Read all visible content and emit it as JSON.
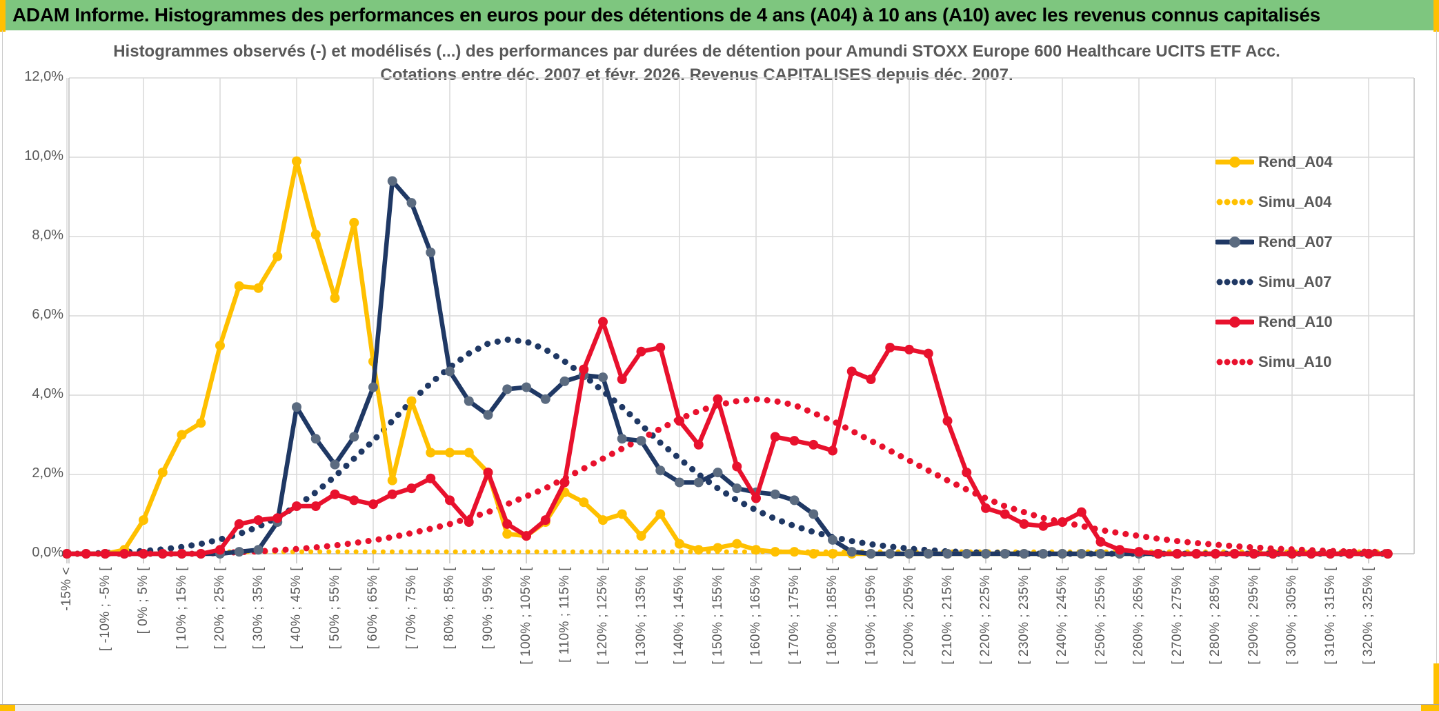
{
  "header": {
    "title": "ADAM Informe. Histogrammes des performances en euros pour des détentions de 4 ans (A04) à 10 ans (A10) avec les revenus connus capitalisés"
  },
  "chart": {
    "title_line1": "Histogrammes observés (-) et modélisés (...) des performances par durées de détention pour Amundi STOXX Europe 600 Healthcare UCITS ETF Acc.",
    "title_line2": "Cotations entre déc. 2007 et févr. 2026. Revenus CAPITALISES depuis déc. 2007."
  },
  "colors": {
    "header_green": "#7EC67F",
    "accent_yellow": "#FFC000",
    "grid": "#D9D9D9",
    "axis_line": "#BFBFBF",
    "text_gray": "#595959",
    "gold": "#FFC000",
    "navy": "#1F3864",
    "navy_marker": "#5B6B80",
    "red": "#E8112D"
  },
  "chart_data": {
    "type": "line",
    "title": "Histogrammes observés (-) et modélisés (...) des performances par durées de détention pour Amundi STOXX Europe 600 Healthcare UCITS ETF Acc. Cotations entre déc. 2007 et févr. 2026. Revenus CAPITALISES depuis déc. 2007.",
    "ylabel": "",
    "ylim": [
      0,
      12
    ],
    "y_ticks": [
      "0,0%",
      "2,0%",
      "4,0%",
      "6,0%",
      "8,0%",
      "10,0%",
      "12,0%"
    ],
    "grid": true,
    "legend_position": "right",
    "x_structure": {
      "bins_total": 70,
      "bin_width_pct": 5,
      "labels_every_n_bins": 2,
      "note": "70 histogram bins of 5% width from <-15% up to [325%;330[; only every other bin is labeled"
    },
    "categories": [
      "-15% <",
      "[ -10% ; -5% [",
      "[ 0% ; 5% [",
      "[ 10% ; 15% [",
      "[ 20% ; 25% [",
      "[ 30% ; 35% [",
      "[ 40% ; 45% [",
      "[ 50% ; 55% [",
      "[ 60% ; 65% [",
      "[ 70% ; 75% [",
      "[ 80% ; 85% [",
      "[ 90% ; 95% [",
      "[ 100% ; 105% [",
      "[ 110% ; 115% [",
      "[ 120% ; 125% [",
      "[ 130% ; 135% [",
      "[ 140% ; 145% [",
      "[ 150% ; 155% [",
      "[ 160% ; 165% [",
      "[ 170% ; 175% [",
      "[ 180% ; 185% [",
      "[ 190% ; 195% [",
      "[ 200% ; 205% [",
      "[ 210% ; 215% [",
      "[ 220% ; 225% [",
      "[ 230% ; 235% [",
      "[ 240% ; 245% [",
      "[ 250% ; 255% [",
      "[ 260% ; 265% [",
      "[ 270% ; 275% [",
      "[ 280% ; 285% [",
      "[ 290% ; 295% [",
      "[ 300% ; 305% [",
      "[ 310% ; 315% [",
      "[ 320% ; 325% ["
    ],
    "series": [
      {
        "name": "Simu_A04",
        "style": "dotted",
        "color": "#FFC000",
        "values": [
          0,
          0,
          0,
          0,
          0,
          0,
          0,
          0,
          0.05,
          0.05,
          0.05,
          0.05,
          0.05,
          0.05,
          0.05,
          0.05,
          0.05,
          0.05,
          0.05,
          0.05,
          0.05,
          0.05,
          0.05,
          0.05,
          0.05,
          0.05,
          0.05,
          0.05,
          0.05,
          0.05,
          0.05,
          0.05,
          0.05,
          0.05,
          0.05,
          0.05,
          0.05,
          0.05,
          0.05,
          0.05,
          0.05,
          0.05,
          0.05,
          0.05,
          0.05,
          0.05,
          0.05,
          0.05,
          0.05,
          0.05,
          0.05,
          0.05,
          0.05,
          0.05,
          0.05,
          0.05,
          0.05,
          0.05,
          0.05,
          0.05,
          0.05,
          0.05,
          0.05,
          0.05,
          0.05,
          0.05,
          0.05,
          0.05,
          0.05,
          0.05
        ]
      },
      {
        "name": "Simu_A07",
        "style": "dotted",
        "color": "#1F3864",
        "values": [
          0,
          0,
          0.02,
          0.04,
          0.07,
          0.11,
          0.17,
          0.25,
          0.36,
          0.5,
          0.68,
          0.92,
          1.2,
          1.55,
          1.95,
          2.4,
          2.85,
          3.35,
          3.85,
          4.3,
          4.7,
          5.05,
          5.3,
          5.4,
          5.35,
          5.15,
          4.85,
          4.5,
          4.1,
          3.7,
          3.25,
          2.8,
          2.4,
          2,
          1.65,
          1.35,
          1.1,
          0.88,
          0.7,
          0.55,
          0.42,
          0.32,
          0.24,
          0.18,
          0.13,
          0.09,
          0.06,
          0.04,
          0.03,
          0.02,
          0,
          0,
          0,
          0,
          0,
          0,
          0,
          0,
          0,
          0,
          0,
          0,
          0,
          0,
          0,
          0,
          0,
          0,
          0,
          0
        ]
      },
      {
        "name": "Simu_A10",
        "style": "dotted",
        "color": "#E8112D",
        "values": [
          0,
          0,
          0,
          0,
          0,
          0,
          0,
          0,
          0.02,
          0.04,
          0.06,
          0.09,
          0.12,
          0.16,
          0.21,
          0.27,
          0.34,
          0.42,
          0.52,
          0.63,
          0.75,
          0.9,
          1.05,
          1.25,
          1.45,
          1.65,
          1.9,
          2.15,
          2.4,
          2.65,
          2.9,
          3.15,
          3.4,
          3.6,
          3.75,
          3.85,
          3.9,
          3.85,
          3.75,
          3.55,
          3.35,
          3.1,
          2.85,
          2.6,
          2.35,
          2.1,
          1.85,
          1.62,
          1.4,
          1.2,
          1.05,
          0.9,
          0.8,
          0.7,
          0.6,
          0.52,
          0.45,
          0.38,
          0.32,
          0.27,
          0.23,
          0.19,
          0.16,
          0.13,
          0.11,
          0.09,
          0.07,
          0.06,
          0.05,
          0.04
        ]
      },
      {
        "name": "Rend_A04",
        "style": "solid",
        "color": "#FFC000",
        "marker_color": "#FFC000",
        "values": [
          0,
          0,
          0,
          0.1,
          0.85,
          2.05,
          3,
          3.3,
          5.25,
          6.75,
          6.7,
          7.5,
          9.9,
          8.05,
          6.45,
          8.35,
          4.85,
          1.85,
          3.85,
          2.55,
          2.55,
          2.55,
          2.05,
          0.5,
          0.45,
          0.8,
          1.55,
          1.3,
          0.85,
          1,
          0.45,
          1,
          0.25,
          0.1,
          0.15,
          0.25,
          0.1,
          0.05,
          0.05,
          0,
          0,
          0,
          0,
          0,
          0,
          0,
          0,
          0,
          0,
          0,
          0,
          0,
          0,
          0,
          0,
          0,
          0,
          0,
          0,
          0,
          0,
          0,
          0,
          0,
          0,
          0,
          0,
          0,
          0,
          0
        ]
      },
      {
        "name": "Rend_A07",
        "style": "solid",
        "color": "#1F3864",
        "marker_color": "#5B6B80",
        "values": [
          0,
          0,
          0,
          0,
          0,
          0,
          0,
          0,
          0,
          0.05,
          0.1,
          0.8,
          3.7,
          2.9,
          2.25,
          2.95,
          4.2,
          9.4,
          8.85,
          7.6,
          4.6,
          3.85,
          3.5,
          4.15,
          4.2,
          3.9,
          4.35,
          4.5,
          4.45,
          2.9,
          2.85,
          2.1,
          1.8,
          1.8,
          2.05,
          1.65,
          1.55,
          1.5,
          1.35,
          1,
          0.35,
          0.05,
          0,
          0,
          0,
          0,
          0,
          0,
          0,
          0,
          0,
          0,
          0,
          0,
          0,
          0,
          0,
          0,
          0,
          0,
          0,
          0,
          0,
          0,
          0,
          0,
          0,
          0,
          0,
          0
        ]
      },
      {
        "name": "Rend_A10",
        "style": "solid",
        "color": "#E8112D",
        "marker_color": "#E8112D",
        "values": [
          0,
          0,
          0,
          0,
          0,
          0,
          0,
          0,
          0.1,
          0.75,
          0.85,
          0.9,
          1.2,
          1.2,
          1.5,
          1.35,
          1.25,
          1.5,
          1.65,
          1.9,
          1.35,
          0.8,
          2.05,
          0.75,
          0.45,
          0.85,
          1.8,
          4.65,
          5.85,
          4.4,
          5.1,
          5.2,
          3.35,
          2.75,
          3.9,
          2.2,
          1.4,
          2.95,
          2.85,
          2.75,
          2.6,
          4.6,
          4.4,
          5.2,
          5.15,
          5.05,
          3.35,
          2.05,
          1.15,
          1,
          0.75,
          0.7,
          0.8,
          1.05,
          0.3,
          0.1,
          0.05,
          0,
          0,
          0,
          0,
          0,
          0,
          0,
          0,
          0,
          0,
          0,
          0,
          0
        ]
      }
    ],
    "legend_order": [
      "Rend_A04",
      "Simu_A04",
      "Rend_A07",
      "Simu_A07",
      "Rend_A10",
      "Simu_A10"
    ]
  }
}
